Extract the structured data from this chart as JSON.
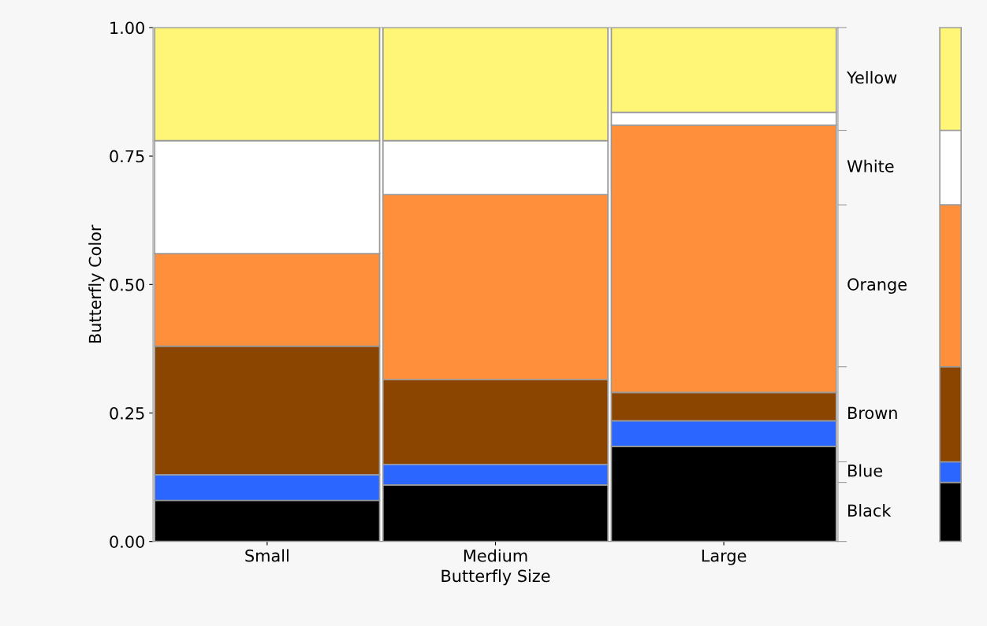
{
  "chart_data": [
    {
      "type": "bar",
      "stacked": true,
      "xlabel": "Butterfly Size",
      "ylabel": "Butterfly Color",
      "categories": [
        "Small",
        "Medium",
        "Large"
      ],
      "ylim": [
        0,
        1
      ],
      "yticks": [
        {
          "value": 0,
          "label": "0.00"
        },
        {
          "value": 0.25,
          "label": "0.25"
        },
        {
          "value": 0.5,
          "label": "0.50"
        },
        {
          "value": 0.75,
          "label": "0.75"
        },
        {
          "value": 1,
          "label": "1.00"
        }
      ],
      "grid": false,
      "series": [
        {
          "name": "Black",
          "color": "#000000",
          "values": [
            0.08,
            0.11,
            0.185
          ]
        },
        {
          "name": "Blue",
          "color": "#2a66ff",
          "values": [
            0.05,
            0.04,
            0.05
          ]
        },
        {
          "name": "Brown",
          "color": "#8b4500",
          "values": [
            0.25,
            0.165,
            0.055
          ]
        },
        {
          "name": "Orange",
          "color": "#ff8f3a",
          "values": [
            0.18,
            0.36,
            0.52
          ]
        },
        {
          "name": "White",
          "color": "#ffffff",
          "values": [
            0.22,
            0.105,
            0.025
          ]
        },
        {
          "name": "Yellow",
          "color": "#fff577",
          "values": [
            0.22,
            0.22,
            0.165
          ]
        }
      ]
    },
    {
      "type": "bar",
      "stacked": true,
      "categories": [
        null
      ],
      "ylim": [
        0,
        1
      ],
      "tick_labels": false,
      "series": [
        {
          "color": "#000000",
          "values": [
            0.115
          ]
        },
        {
          "color": "#2a66ff",
          "values": [
            0.04
          ]
        },
        {
          "color": "#8b4500",
          "values": [
            0.185
          ]
        },
        {
          "color": "#ff8f3a",
          "values": [
            0.315
          ]
        },
        {
          "color": "#ffffff",
          "values": [
            0.145
          ]
        },
        {
          "color": "#fff577",
          "values": [
            0.2
          ]
        }
      ]
    }
  ]
}
